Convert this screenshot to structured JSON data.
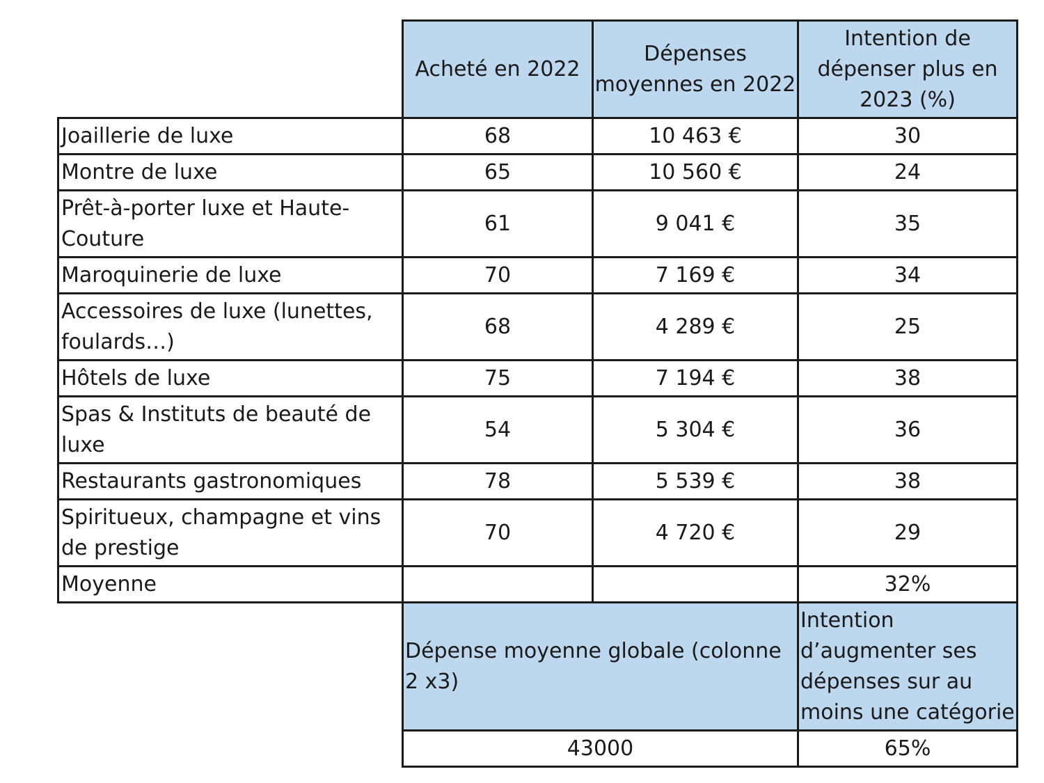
{
  "header": {
    "col1": "Acheté en 2022",
    "col2": "Dépenses moyennes en 2022",
    "col3": "Intention de dépenser plus en 2023 (%)"
  },
  "rows": [
    {
      "label": "Joaillerie de luxe",
      "achete": "68",
      "depenses": "10 463 €",
      "intention": "30"
    },
    {
      "label": "Montre de luxe",
      "achete": "65",
      "depenses": "10 560 €",
      "intention": "24"
    },
    {
      "label": "Prêt-à-porter luxe et Haute-Couture",
      "achete": "61",
      "depenses": "9 041 €",
      "intention": "35"
    },
    {
      "label": "Maroquinerie de luxe",
      "achete": "70",
      "depenses": "7 169 €",
      "intention": "34"
    },
    {
      "label": "Accessoires de luxe (lunettes, foulards…)",
      "achete": "68",
      "depenses": "4 289 €",
      "intention": "25"
    },
    {
      "label": "Hôtels de luxe",
      "achete": "75",
      "depenses": "7 194 €",
      "intention": "38"
    },
    {
      "label": "Spas & Instituts de beauté de luxe",
      "achete": "54",
      "depenses": "5 304 €",
      "intention": "36"
    },
    {
      "label": "Restaurants gastronomiques",
      "achete": "78",
      "depenses": "5 539 €",
      "intention": "38"
    },
    {
      "label": "Spiritueux, champagne et vins de prestige",
      "achete": "70",
      "depenses": "4 720 €",
      "intention": "29"
    }
  ],
  "average": {
    "label": "Moyenne",
    "achete": "",
    "depenses": "",
    "intention": "32%"
  },
  "summary": {
    "header_global": "Dépense moyenne globale (colonne 2 x3)",
    "header_intention": "Intention d’augmenter ses dépenses sur au moins une catégorie",
    "value_global": "43000",
    "value_intention": "65%"
  }
}
